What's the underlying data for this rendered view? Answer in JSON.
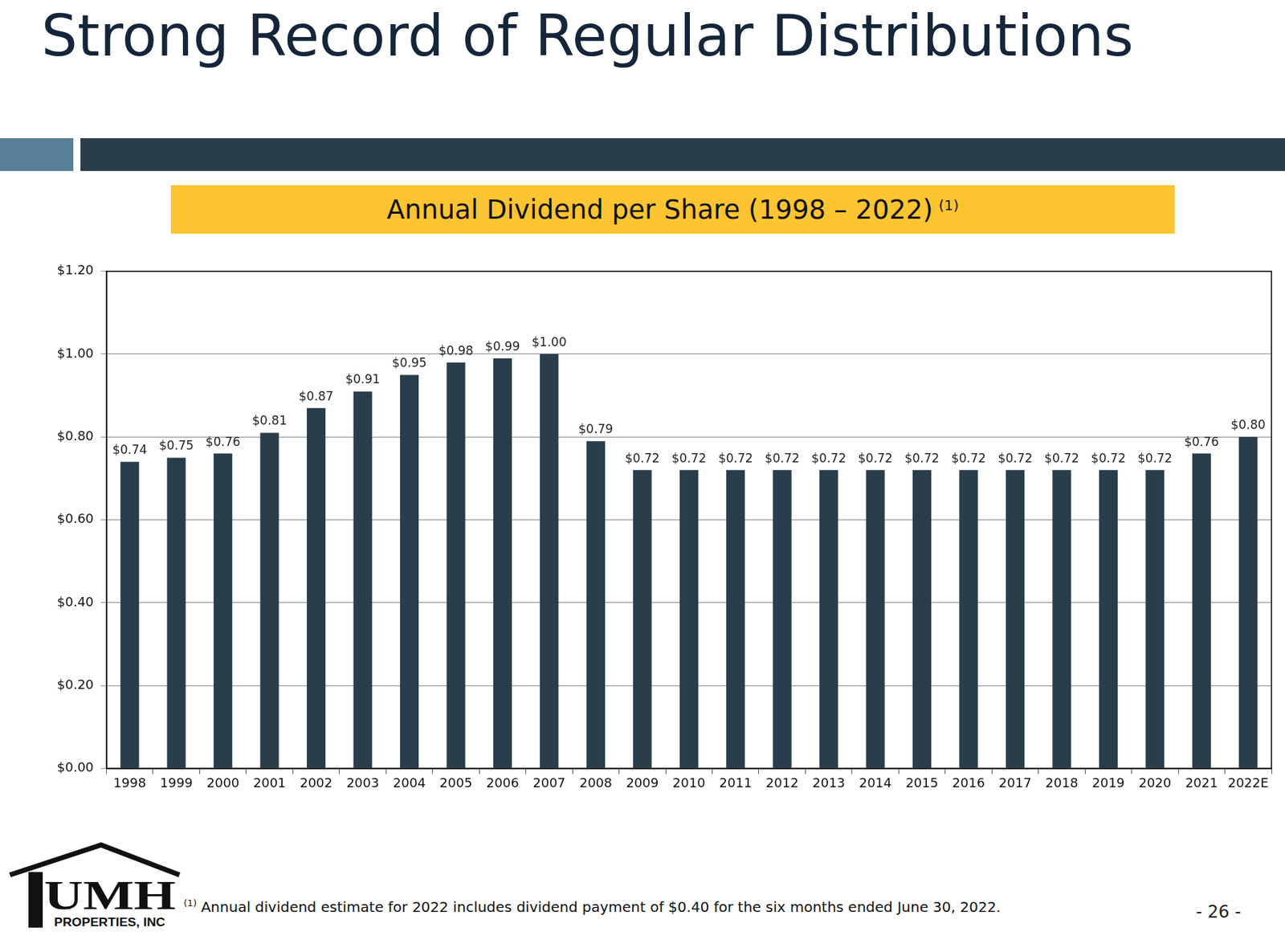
{
  "heading": "Strong Record of Regular Distributions",
  "chart_data": {
    "type": "bar",
    "title": "Annual Dividend per Share (1998 – 2022)",
    "title_note": "(1)",
    "categories": [
      "1998",
      "1999",
      "2000",
      "2001",
      "2002",
      "2003",
      "2004",
      "2005",
      "2006",
      "2007",
      "2008",
      "2009",
      "2010",
      "2011",
      "2012",
      "2013",
      "2014",
      "2015",
      "2016",
      "2017",
      "2018",
      "2019",
      "2020",
      "2021",
      "2022E"
    ],
    "values": [
      0.74,
      0.75,
      0.76,
      0.81,
      0.87,
      0.91,
      0.95,
      0.98,
      0.99,
      1.0,
      0.79,
      0.72,
      0.72,
      0.72,
      0.72,
      0.72,
      0.72,
      0.72,
      0.72,
      0.72,
      0.72,
      0.72,
      0.72,
      0.76,
      0.8
    ],
    "value_labels": [
      "$0.74",
      "$0.75",
      "$0.76",
      "$0.81",
      "$0.87",
      "$0.91",
      "$0.95",
      "$0.98",
      "$0.99",
      "$1.00",
      "$0.79",
      "$0.72",
      "$0.72",
      "$0.72",
      "$0.72",
      "$0.72",
      "$0.72",
      "$0.72",
      "$0.72",
      "$0.72",
      "$0.72",
      "$0.72",
      "$0.72",
      "$0.76",
      "$0.80"
    ],
    "color": "#2a3d4b",
    "ylim": [
      0,
      1.2
    ],
    "yticks": [
      {
        "value": 0,
        "label": "$0.00"
      },
      {
        "value": 0.2,
        "label": "$0.20"
      },
      {
        "value": 0.4,
        "label": "$0.40"
      },
      {
        "value": 0.6,
        "label": "$0.60"
      },
      {
        "value": 0.8,
        "label": "$0.80"
      },
      {
        "value": 1.0,
        "label": "$1.00"
      },
      {
        "value": 1.2,
        "label": "$1.20"
      }
    ],
    "grid": true,
    "data_labels": true
  },
  "footnote": {
    "mark": "(1)",
    "text": "Annual dividend estimate for 2022 includes dividend payment of $0.40 for the six months ended June 30, 2022."
  },
  "logo": {
    "name": "UMH",
    "subtitle": "PROPERTIES, INC"
  },
  "page_number": "- 26 -"
}
